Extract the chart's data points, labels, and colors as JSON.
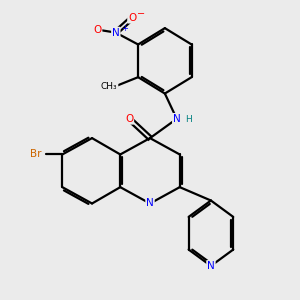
{
  "bg_color": "#ebebeb",
  "atom_colors": {
    "N": "#0000ff",
    "O": "#ff0000",
    "Br": "#cc6600",
    "C": "#000000",
    "H": "#008080"
  }
}
